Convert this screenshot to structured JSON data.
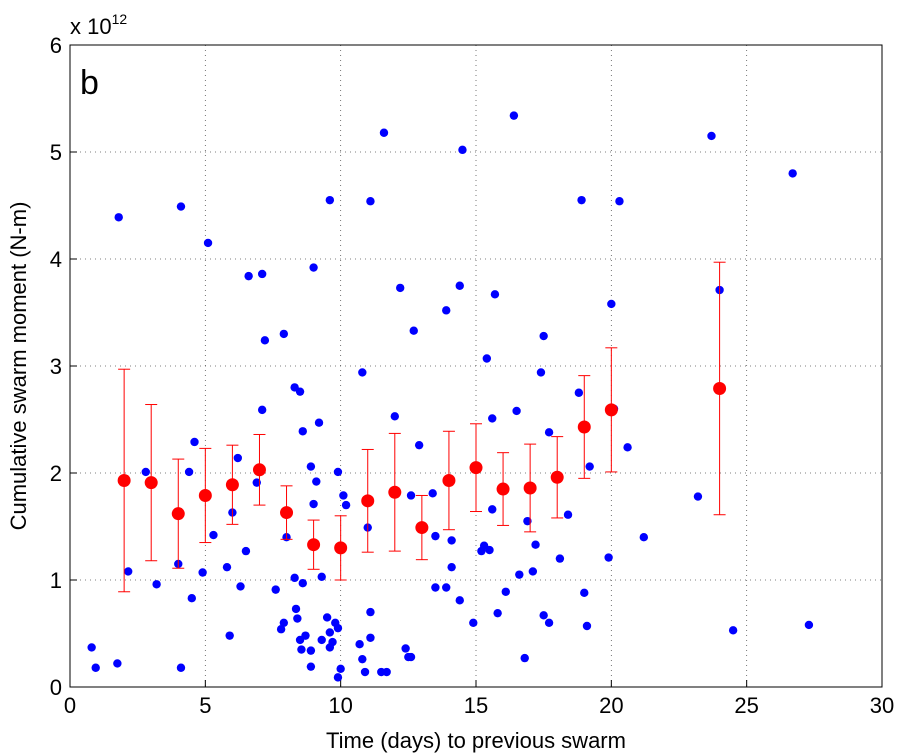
{
  "chart_data": {
    "type": "scatter",
    "panel_label": "b",
    "x_label": "Time (days) to previous swarm",
    "y_label": "Cumulative swarm moment (N-m)",
    "y_multiplier": "x 10",
    "y_multiplier_exponent": "12",
    "xlim": [
      0,
      30
    ],
    "xticks": [
      0,
      5,
      10,
      15,
      20,
      25,
      30
    ],
    "ylim": [
      0,
      6
    ],
    "yticks": [
      0,
      1,
      2,
      3,
      4,
      5,
      6
    ],
    "grid": true,
    "series": [
      {
        "color": "#0000ff",
        "x": [
          0.8,
          0.95,
          1.75,
          2.15,
          1.8,
          2.8,
          3.2,
          4.0,
          4.1,
          4.1,
          4.4,
          4.5,
          4.6,
          4.9,
          5.1,
          5.3,
          5.8,
          5.9,
          6.0,
          6.2,
          6.3,
          6.5,
          6.6,
          6.9,
          7.1,
          7.1,
          7.2,
          7.6,
          7.8,
          7.9,
          7.9,
          8.0,
          8.3,
          8.3,
          8.35,
          8.4,
          8.5,
          8.5,
          8.55,
          8.6,
          8.6,
          8.7,
          8.9,
          8.9,
          8.9,
          9.0,
          9.0,
          9.1,
          9.2,
          9.3,
          9.3,
          9.5,
          9.6,
          9.6,
          9.6,
          9.7,
          9.8,
          9.9,
          9.9,
          9.9,
          10.0,
          10.1,
          10.2,
          10.7,
          10.8,
          10.8,
          10.9,
          11.0,
          11.1,
          11.1,
          11.1,
          11.6,
          11.5,
          11.7,
          12.0,
          12.2,
          12.4,
          12.5,
          12.6,
          12.6,
          12.7,
          12.9,
          13.4,
          13.5,
          13.5,
          13.9,
          13.9,
          14.1,
          14.1,
          14.4,
          14.4,
          14.5,
          14.9,
          15.2,
          15.3,
          15.4,
          15.5,
          15.6,
          15.6,
          15.7,
          15.8,
          16.1,
          16.4,
          16.5,
          16.6,
          16.8,
          16.9,
          17.1,
          17.2,
          17.4,
          17.5,
          17.5,
          17.7,
          17.7,
          18.1,
          18.4,
          18.8,
          18.9,
          19.0,
          19.1,
          19.2,
          19.9,
          20.0,
          20.1,
          20.3,
          20.6,
          21.2,
          23.2,
          23.7,
          24.0,
          24.5,
          26.7,
          27.3
        ],
        "values": [
          0.37,
          0.18,
          0.22,
          1.08,
          4.39,
          2.01,
          0.96,
          1.15,
          4.49,
          0.18,
          2.01,
          0.83,
          2.29,
          1.07,
          4.15,
          1.42,
          1.12,
          0.48,
          1.63,
          2.14,
          0.94,
          1.27,
          3.84,
          1.91,
          2.59,
          3.86,
          3.24,
          0.91,
          0.54,
          0.6,
          3.3,
          1.4,
          2.8,
          1.02,
          0.73,
          0.64,
          2.76,
          0.44,
          0.35,
          2.39,
          0.97,
          0.48,
          2.06,
          0.34,
          0.19,
          1.71,
          3.92,
          1.92,
          2.47,
          0.44,
          1.03,
          0.65,
          0.51,
          0.37,
          4.55,
          0.42,
          0.6,
          0.55,
          2.01,
          0.09,
          0.17,
          1.79,
          1.7,
          0.4,
          0.26,
          2.94,
          0.14,
          1.49,
          4.54,
          0.7,
          0.46,
          5.18,
          0.14,
          0.14,
          2.53,
          3.73,
          0.36,
          0.28,
          1.79,
          0.28,
          3.33,
          2.26,
          1.81,
          1.41,
          0.93,
          3.52,
          0.93,
          1.12,
          1.37,
          3.75,
          0.81,
          5.02,
          0.6,
          1.27,
          1.32,
          3.07,
          1.28,
          2.51,
          1.66,
          3.67,
          0.69,
          0.89,
          5.34,
          2.58,
          1.05,
          0.27,
          1.55,
          1.08,
          1.33,
          2.94,
          0.67,
          3.28,
          2.38,
          0.6,
          1.2,
          1.61,
          2.75,
          4.55,
          0.88,
          0.57,
          2.06,
          1.21,
          3.58,
          2.6,
          4.54,
          2.24,
          1.4,
          1.78,
          5.15,
          3.71,
          0.53,
          4.8,
          0.58
        ]
      },
      {
        "color": "#ff0000",
        "x": [
          2,
          3,
          4,
          5,
          6,
          7,
          8,
          9,
          10,
          11,
          12,
          13,
          14,
          15,
          16,
          17,
          18,
          19,
          20,
          24
        ],
        "values": [
          1.93,
          1.91,
          1.62,
          1.79,
          1.89,
          2.03,
          1.63,
          1.33,
          1.3,
          1.74,
          1.82,
          1.49,
          1.93,
          2.05,
          1.85,
          1.86,
          1.96,
          2.43,
          2.59,
          2.79
        ],
        "errors": [
          1.04,
          0.73,
          0.51,
          0.44,
          0.37,
          0.33,
          0.25,
          0.23,
          0.3,
          0.48,
          0.55,
          0.3,
          0.46,
          0.41,
          0.34,
          0.41,
          0.38,
          0.48,
          0.58,
          1.18
        ]
      }
    ]
  }
}
